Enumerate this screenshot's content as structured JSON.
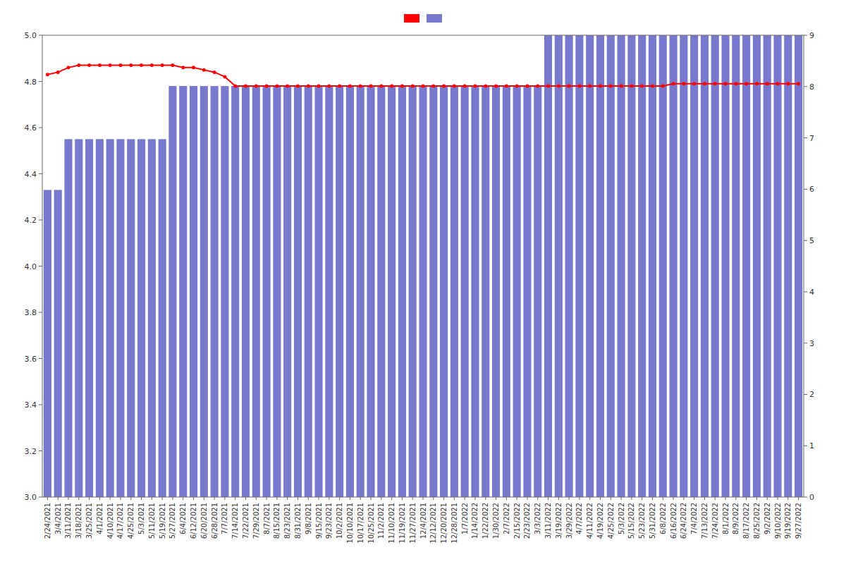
{
  "chart_data": {
    "type": "bar",
    "categories": [
      "2/24/2021",
      "3/4/2021",
      "3/11/2021",
      "3/18/2021",
      "3/25/2021",
      "4/1/2021",
      "4/10/2021",
      "4/17/2021",
      "4/25/2021",
      "5/3/2021",
      "5/11/2021",
      "5/19/2021",
      "5/27/2021",
      "6/4/2021",
      "6/12/2021",
      "6/20/2021",
      "6/28/2021",
      "7/7/2021",
      "7/14/2021",
      "7/22/2021",
      "7/29/2021",
      "8/7/2021",
      "8/15/2021",
      "8/23/2021",
      "8/31/2021",
      "9/8/2021",
      "9/15/2021",
      "9/23/2021",
      "10/2/2021",
      "10/10/2021",
      "10/17/2021",
      "10/25/2021",
      "11/2/2021",
      "11/10/2021",
      "11/19/2021",
      "11/27/2021",
      "12/4/2021",
      "12/12/2021",
      "12/20/2021",
      "12/28/2021",
      "1/7/2022",
      "1/14/2022",
      "1/22/2022",
      "1/30/2022",
      "2/7/2022",
      "2/15/2022",
      "2/23/2022",
      "3/3/2022",
      "3/11/2022",
      "3/19/2022",
      "3/29/2022",
      "4/7/2022",
      "4/11/2022",
      "4/19/2022",
      "4/25/2022",
      "5/3/2022",
      "5/15/2022",
      "5/23/2022",
      "5/31/2022",
      "6/8/2022",
      "6/16/2022",
      "6/24/2022",
      "7/4/2022",
      "7/13/2022",
      "7/24/2022",
      "8/1/2022",
      "8/9/2022",
      "8/17/2022",
      "8/25/2022",
      "9/2/2022",
      "9/10/2022",
      "9/19/2022",
      "9/27/2022"
    ],
    "series": [
      {
        "type": "bar",
        "color": "#7878cc",
        "values": [
          4.33,
          4.33,
          4.55,
          4.55,
          4.55,
          4.55,
          4.55,
          4.55,
          4.55,
          4.55,
          4.55,
          4.55,
          4.78,
          4.78,
          4.78,
          4.78,
          4.78,
          4.78,
          4.78,
          4.78,
          4.78,
          4.78,
          4.78,
          4.78,
          4.78,
          4.78,
          4.78,
          4.78,
          4.78,
          4.78,
          4.78,
          4.78,
          4.78,
          4.78,
          4.78,
          4.78,
          4.78,
          4.78,
          4.78,
          4.78,
          4.78,
          4.78,
          4.78,
          4.78,
          4.78,
          4.78,
          4.78,
          4.78,
          5.0,
          5.0,
          5.0,
          5.0,
          5.0,
          5.0,
          5.0,
          5.0,
          5.0,
          5.0,
          5.0,
          5.0,
          5.0,
          5.0,
          5.0,
          5.0,
          5.0,
          5.0,
          5.0,
          5.0,
          5.0,
          5.0,
          5.0,
          5.0,
          5.0
        ]
      },
      {
        "type": "line",
        "color": "#ff0000",
        "marker": "circle",
        "values": [
          4.83,
          4.84,
          4.86,
          4.87,
          4.87,
          4.87,
          4.87,
          4.87,
          4.87,
          4.87,
          4.87,
          4.87,
          4.87,
          4.86,
          4.86,
          4.85,
          4.84,
          4.82,
          4.78,
          4.78,
          4.78,
          4.78,
          4.78,
          4.78,
          4.78,
          4.78,
          4.78,
          4.78,
          4.78,
          4.78,
          4.78,
          4.78,
          4.78,
          4.78,
          4.78,
          4.78,
          4.78,
          4.78,
          4.78,
          4.78,
          4.78,
          4.78,
          4.78,
          4.78,
          4.78,
          4.78,
          4.78,
          4.78,
          4.78,
          4.78,
          4.78,
          4.78,
          4.78,
          4.78,
          4.78,
          4.78,
          4.78,
          4.78,
          4.78,
          4.78,
          4.79,
          4.79,
          4.79,
          4.79,
          4.79,
          4.79,
          4.79,
          4.79,
          4.79,
          4.79,
          4.79,
          4.79,
          4.79
        ]
      }
    ],
    "ylim": [
      3.0,
      5.0
    ],
    "yticks": [
      {
        "value": 3.0,
        "label": "3.0"
      },
      3.2,
      3.4,
      3.6,
      3.8,
      {
        "value": 4.0,
        "label": "4.0"
      },
      4.2,
      4.4,
      4.6,
      4.8,
      {
        "value": 5.0,
        "label": "5.0"
      }
    ],
    "y2lim": [
      0,
      9
    ],
    "y2ticks": [
      0,
      1,
      2,
      3,
      4,
      5,
      6,
      7,
      8,
      9
    ],
    "grid": false,
    "legend": "top"
  }
}
